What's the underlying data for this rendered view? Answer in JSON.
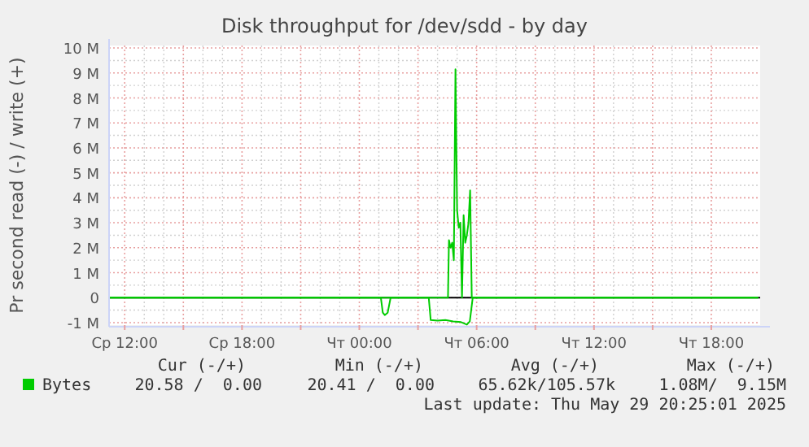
{
  "chart_data": {
    "type": "line",
    "title": "Disk throughput for /dev/sdd - by day",
    "ylabel": "Pr second read (-) / write (+)",
    "xlim": [
      "2025-05-28T11:12",
      "2025-05-29T20:30"
    ],
    "ylim": [
      -1.1,
      10.1
    ],
    "xticks": [
      {
        "value": "2025-05-28T12:00",
        "label": "Ср 12:00"
      },
      {
        "value": "2025-05-28T15:00",
        "label": null
      },
      {
        "value": "2025-05-28T18:00",
        "label": "Ср 18:00"
      },
      {
        "value": "2025-05-28T21:00",
        "label": null
      },
      {
        "value": "2025-05-29T00:00",
        "label": "Чт 00:00"
      },
      {
        "value": "2025-05-29T03:00",
        "label": null
      },
      {
        "value": "2025-05-29T06:00",
        "label": "Чт 06:00"
      },
      {
        "value": "2025-05-29T09:00",
        "label": null
      },
      {
        "value": "2025-05-29T12:00",
        "label": "Чт 12:00"
      },
      {
        "value": "2025-05-29T15:00",
        "label": null
      },
      {
        "value": "2025-05-29T18:00",
        "label": "Чт 18:00"
      }
    ],
    "yticks": [
      {
        "value": -1,
        "label": "-1 M"
      },
      0,
      {
        "value": 1,
        "label": "1 M"
      },
      {
        "value": 2,
        "label": "2 M"
      },
      {
        "value": 3,
        "label": "3 M"
      },
      {
        "value": 4,
        "label": "4 M"
      },
      {
        "value": 5,
        "label": "5 M"
      },
      {
        "value": 6,
        "label": "6 M"
      },
      {
        "value": 7,
        "label": "7 M"
      },
      {
        "value": 8,
        "label": "8 M"
      },
      {
        "value": 9,
        "label": "9 M"
      },
      {
        "value": 10,
        "label": "10 M"
      }
    ],
    "grid": true,
    "legend": "bottom left",
    "marker": "none",
    "line_style": "solid",
    "series": [
      {
        "color": "#00cc00",
        "x": [
          "2025-05-28T11:12",
          "2025-05-29T01:06",
          "2025-05-29T01:12",
          "2025-05-29T01:18",
          "2025-05-29T01:27",
          "2025-05-29T01:36",
          "2025-05-29T03:33",
          "2025-05-29T03:39",
          "2025-05-29T04:00",
          "2025-05-29T04:24",
          "2025-05-29T04:48",
          "2025-05-29T05:12",
          "2025-05-29T05:30",
          "2025-05-29T05:39",
          "2025-05-29T05:48",
          "2025-05-29T20:24"
        ],
        "values": [
          0,
          0,
          -0.6,
          -0.7,
          -0.6,
          0,
          0,
          -0.9,
          -0.92,
          -0.9,
          -0.95,
          -0.98,
          -1.08,
          -0.95,
          0,
          0
        ]
      },
      {
        "name": "Bytes",
        "color": "#00cc00",
        "x": [
          "2025-05-28T11:12",
          "2025-05-29T04:32",
          "2025-05-29T04:35",
          "2025-05-29T04:40",
          "2025-05-29T04:45",
          "2025-05-29T04:50",
          "2025-05-29T04:55",
          "2025-05-29T05:00",
          "2025-05-29T05:05",
          "2025-05-29T05:10",
          "2025-05-29T05:15",
          "2025-05-29T05:20",
          "2025-05-29T05:25",
          "2025-05-29T05:30",
          "2025-05-29T05:35",
          "2025-05-29T05:40",
          "2025-05-29T05:45",
          "2025-05-29T20:24"
        ],
        "values": [
          0,
          0,
          2.3,
          2.0,
          2.2,
          1.5,
          9.15,
          3.5,
          2.8,
          3.0,
          0,
          3.3,
          2.2,
          2.5,
          3.0,
          4.3,
          0,
          0
        ]
      }
    ],
    "annotations": [
      "Cur (-/+)",
      "Min (-/+)",
      "Avg (-/+)",
      "Max (-/+)",
      "20.58 /  0.00",
      "20.41 /  0.00",
      "65.62k/105.57k",
      "1.08M/  9.15M",
      "Last update: Thu May 29 20:25:01 2025"
    ]
  }
}
